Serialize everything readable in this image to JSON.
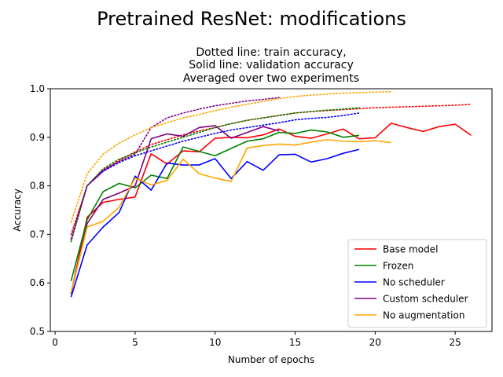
{
  "chart_data": {
    "type": "line",
    "title": "Pretrained ResNet: modifications",
    "subtitle_lines": [
      "Dotted line: train accuracy,",
      "Solid line: validation accuracy",
      "Averaged over two experiments"
    ],
    "xlabel": "Number of epochs",
    "ylabel": "Accuracy",
    "xlim": [
      -0.3,
      27.3
    ],
    "ylim": [
      0.5,
      1.0
    ],
    "xticks": [
      0,
      5,
      10,
      15,
      20,
      25
    ],
    "yticks": [
      0.5,
      0.6,
      0.7,
      0.8,
      0.9,
      1.0
    ],
    "ytick_labels": [
      "0.5",
      "0.6",
      "0.7",
      "0.8",
      "0.9",
      "1.0"
    ],
    "grid": false,
    "legend_position": "lower-right",
    "line_styles": {
      "solid": "validation accuracy",
      "dotted": "train accuracy"
    },
    "series": [
      {
        "name": "Base model",
        "color": "#ff0000",
        "validation": [
          [
            1,
            0.578
          ],
          [
            2,
            0.735
          ],
          [
            3,
            0.766
          ],
          [
            4,
            0.772
          ],
          [
            5,
            0.777
          ],
          [
            6,
            0.866
          ],
          [
            7,
            0.845
          ],
          [
            8,
            0.872
          ],
          [
            9,
            0.87
          ],
          [
            10,
            0.898
          ],
          [
            11,
            0.9
          ],
          [
            12,
            0.899
          ],
          [
            13,
            0.905
          ],
          [
            14,
            0.917
          ],
          [
            15,
            0.902
          ],
          [
            16,
            0.898
          ],
          [
            17,
            0.907
          ],
          [
            18,
            0.917
          ],
          [
            19,
            0.897
          ],
          [
            20,
            0.899
          ],
          [
            21,
            0.929
          ],
          [
            22,
            0.92
          ],
          [
            23,
            0.912
          ],
          [
            24,
            0.922
          ],
          [
            25,
            0.927
          ],
          [
            26,
            0.904
          ]
        ],
        "train": [
          [
            1,
            0.7
          ],
          [
            2,
            0.8
          ],
          [
            3,
            0.83
          ],
          [
            4,
            0.852
          ],
          [
            5,
            0.87
          ],
          [
            6,
            0.885
          ],
          [
            7,
            0.895
          ],
          [
            8,
            0.905
          ],
          [
            9,
            0.913
          ],
          [
            10,
            0.92
          ],
          [
            11,
            0.928
          ],
          [
            12,
            0.935
          ],
          [
            13,
            0.94
          ],
          [
            14,
            0.945
          ],
          [
            15,
            0.95
          ],
          [
            16,
            0.953
          ],
          [
            17,
            0.955
          ],
          [
            18,
            0.957
          ],
          [
            19,
            0.959
          ],
          [
            20,
            0.961
          ],
          [
            21,
            0.962
          ],
          [
            22,
            0.963
          ],
          [
            23,
            0.964
          ],
          [
            24,
            0.965
          ],
          [
            25,
            0.966
          ],
          [
            26,
            0.968
          ]
        ]
      },
      {
        "name": "Frozen",
        "color": "#008000",
        "validation": [
          [
            1,
            0.604
          ],
          [
            2,
            0.73
          ],
          [
            3,
            0.788
          ],
          [
            4,
            0.805
          ],
          [
            5,
            0.796
          ],
          [
            6,
            0.822
          ],
          [
            7,
            0.815
          ],
          [
            8,
            0.88
          ],
          [
            9,
            0.871
          ],
          [
            10,
            0.862
          ],
          [
            11,
            0.877
          ],
          [
            12,
            0.892
          ],
          [
            13,
            0.897
          ],
          [
            14,
            0.91
          ],
          [
            15,
            0.908
          ],
          [
            16,
            0.915
          ],
          [
            17,
            0.911
          ],
          [
            18,
            0.9
          ],
          [
            19,
            0.904
          ]
        ],
        "train": [
          [
            1,
            0.685
          ],
          [
            2,
            0.8
          ],
          [
            3,
            0.835
          ],
          [
            4,
            0.855
          ],
          [
            5,
            0.868
          ],
          [
            6,
            0.88
          ],
          [
            7,
            0.89
          ],
          [
            8,
            0.9
          ],
          [
            9,
            0.91
          ],
          [
            10,
            0.92
          ],
          [
            11,
            0.928
          ],
          [
            12,
            0.935
          ],
          [
            13,
            0.94
          ],
          [
            14,
            0.945
          ],
          [
            15,
            0.95
          ],
          [
            16,
            0.953
          ],
          [
            17,
            0.956
          ],
          [
            18,
            0.958
          ],
          [
            19,
            0.961
          ]
        ]
      },
      {
        "name": "No scheduler",
        "color": "#0000ff",
        "validation": [
          [
            1,
            0.571
          ],
          [
            2,
            0.678
          ],
          [
            3,
            0.715
          ],
          [
            4,
            0.745
          ],
          [
            5,
            0.82
          ],
          [
            6,
            0.791
          ],
          [
            7,
            0.847
          ],
          [
            8,
            0.843
          ],
          [
            9,
            0.843
          ],
          [
            10,
            0.856
          ],
          [
            11,
            0.815
          ],
          [
            12,
            0.85
          ],
          [
            13,
            0.832
          ],
          [
            14,
            0.864
          ],
          [
            15,
            0.865
          ],
          [
            16,
            0.849
          ],
          [
            17,
            0.856
          ],
          [
            18,
            0.867
          ],
          [
            19,
            0.875
          ]
        ],
        "train": [
          [
            1,
            0.69
          ],
          [
            2,
            0.8
          ],
          [
            3,
            0.83
          ],
          [
            4,
            0.848
          ],
          [
            5,
            0.862
          ],
          [
            6,
            0.872
          ],
          [
            7,
            0.882
          ],
          [
            8,
            0.892
          ],
          [
            9,
            0.9
          ],
          [
            10,
            0.908
          ],
          [
            11,
            0.915
          ],
          [
            12,
            0.92
          ],
          [
            13,
            0.925
          ],
          [
            14,
            0.93
          ],
          [
            15,
            0.936
          ],
          [
            16,
            0.939
          ],
          [
            17,
            0.941
          ],
          [
            18,
            0.945
          ],
          [
            19,
            0.95
          ]
        ]
      },
      {
        "name": "Custom scheduler",
        "color": "#800080",
        "validation": [
          [
            1,
            0.578
          ],
          [
            2,
            0.722
          ],
          [
            3,
            0.772
          ],
          [
            4,
            0.785
          ],
          [
            5,
            0.8
          ],
          [
            6,
            0.897
          ],
          [
            7,
            0.907
          ],
          [
            8,
            0.902
          ],
          [
            9,
            0.92
          ],
          [
            10,
            0.924
          ],
          [
            11,
            0.898
          ],
          [
            12,
            0.91
          ],
          [
            13,
            0.922
          ],
          [
            14,
            0.913
          ]
        ],
        "train": [
          [
            1,
            0.69
          ],
          [
            2,
            0.8
          ],
          [
            3,
            0.833
          ],
          [
            4,
            0.85
          ],
          [
            5,
            0.865
          ],
          [
            6,
            0.92
          ],
          [
            7,
            0.94
          ],
          [
            8,
            0.95
          ],
          [
            9,
            0.958
          ],
          [
            10,
            0.965
          ],
          [
            11,
            0.97
          ],
          [
            12,
            0.975
          ],
          [
            13,
            0.978
          ],
          [
            14,
            0.982
          ]
        ]
      },
      {
        "name": "No augmentation",
        "color": "#ffa500",
        "validation": [
          [
            1,
            0.58
          ],
          [
            2,
            0.715
          ],
          [
            3,
            0.727
          ],
          [
            4,
            0.756
          ],
          [
            5,
            0.816
          ],
          [
            6,
            0.802
          ],
          [
            7,
            0.811
          ],
          [
            8,
            0.855
          ],
          [
            9,
            0.825
          ],
          [
            10,
            0.816
          ],
          [
            11,
            0.809
          ],
          [
            12,
            0.878
          ],
          [
            13,
            0.883
          ],
          [
            14,
            0.886
          ],
          [
            15,
            0.884
          ],
          [
            16,
            0.89
          ],
          [
            17,
            0.895
          ],
          [
            18,
            0.892
          ],
          [
            19,
            0.891
          ],
          [
            20,
            0.893
          ],
          [
            21,
            0.889
          ]
        ],
        "train": [
          [
            1,
            0.725
          ],
          [
            2,
            0.825
          ],
          [
            3,
            0.865
          ],
          [
            4,
            0.888
          ],
          [
            5,
            0.905
          ],
          [
            6,
            0.92
          ],
          [
            7,
            0.93
          ],
          [
            8,
            0.94
          ],
          [
            9,
            0.947
          ],
          [
            10,
            0.955
          ],
          [
            11,
            0.962
          ],
          [
            12,
            0.968
          ],
          [
            13,
            0.974
          ],
          [
            14,
            0.98
          ],
          [
            15,
            0.984
          ],
          [
            16,
            0.987
          ],
          [
            17,
            0.989
          ],
          [
            18,
            0.991
          ],
          [
            19,
            0.992
          ],
          [
            20,
            0.993
          ],
          [
            21,
            0.994
          ]
        ]
      }
    ]
  }
}
